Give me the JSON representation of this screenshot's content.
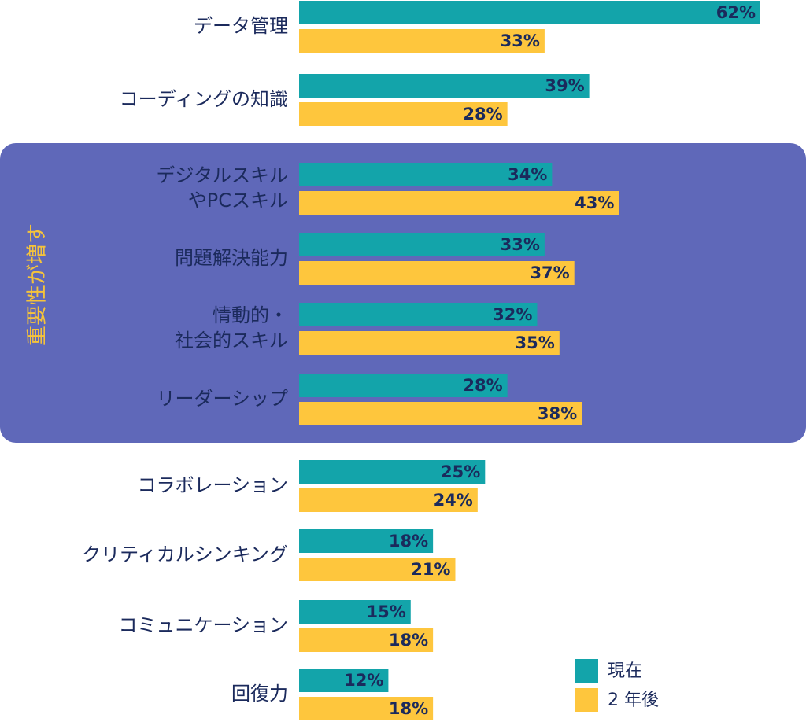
{
  "chart_data": {
    "type": "bar",
    "orientation": "horizontal",
    "categories": [
      [
        "データ管理"
      ],
      [
        "コーディングの知識"
      ],
      [
        "デジタルスキル",
        "やPCスキル"
      ],
      [
        "問題解決能力"
      ],
      [
        "情動的・",
        "社会的スキル"
      ],
      [
        "リーダーシップ"
      ],
      [
        "コラボレーション"
      ],
      [
        "クリティカルシンキング"
      ],
      [
        "コミュニケーション"
      ],
      [
        "回復力"
      ]
    ],
    "series": [
      {
        "name": "現在",
        "color": "#13a4aa",
        "values": [
          62,
          39,
          34,
          33,
          32,
          28,
          25,
          18,
          15,
          12
        ]
      },
      {
        "name": "2 年後",
        "color": "#fec63d",
        "values": [
          33,
          28,
          43,
          37,
          35,
          38,
          24,
          21,
          18,
          18
        ]
      }
    ],
    "value_suffix": "%",
    "highlight": {
      "label": "重要性が増す",
      "color": "#5f68b9",
      "text_color": "#f5c33b",
      "categories": [
        2,
        3,
        4,
        5
      ]
    },
    "legend": {
      "placement": "bottom-right"
    },
    "xlim": [
      0,
      62
    ]
  }
}
